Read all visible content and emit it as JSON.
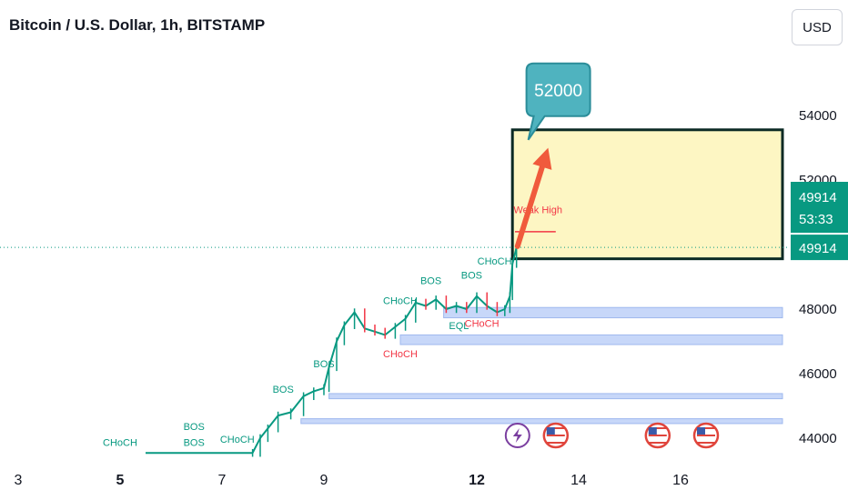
{
  "header": {
    "title": "Bitcoin / U.S. Dollar, 1h, BITSTAMP",
    "currency_button": "USD"
  },
  "colors": {
    "up": "#089981",
    "down": "#f23645",
    "zone_fill": "#fdf6c3",
    "zone_border": "#0b2a24",
    "callout_fill": "#4fb3bf",
    "arrow": "#f05a3c",
    "demand_fill": "#c7d7f9",
    "price_line": "#089981"
  },
  "chart_data": {
    "type": "candlestick",
    "symbol": "Bitcoin / U.S. Dollar",
    "interval": "1h",
    "exchange": "BITSTAMP",
    "x_ticks": [
      {
        "label": "3",
        "day": 3,
        "bold": false
      },
      {
        "label": "5",
        "day": 5,
        "bold": true
      },
      {
        "label": "7",
        "day": 7,
        "bold": false
      },
      {
        "label": "9",
        "day": 9,
        "bold": false
      },
      {
        "label": "12",
        "day": 12,
        "bold": true
      },
      {
        "label": "14",
        "day": 14,
        "bold": false
      },
      {
        "label": "16",
        "day": 16,
        "bold": false
      }
    ],
    "y_ticks": [
      44000,
      46000,
      48000,
      52000,
      54000
    ],
    "current_price": 49914,
    "countdown": "53:33",
    "price_path": [
      [
        5.5,
        43540
      ],
      [
        7.6,
        43540
      ],
      [
        7.75,
        44000
      ],
      [
        7.9,
        44300
      ],
      [
        8.1,
        44700
      ],
      [
        8.35,
        44800
      ],
      [
        8.6,
        45300
      ],
      [
        8.8,
        45450
      ],
      [
        9.0,
        45550
      ],
      [
        9.1,
        46200
      ],
      [
        9.25,
        47000
      ],
      [
        9.4,
        47500
      ],
      [
        9.6,
        47900
      ],
      [
        9.8,
        47400
      ],
      [
        10.0,
        47300
      ],
      [
        10.2,
        47200
      ],
      [
        10.4,
        47450
      ],
      [
        10.6,
        47700
      ],
      [
        10.8,
        48200
      ],
      [
        11.0,
        48100
      ],
      [
        11.2,
        48300
      ],
      [
        11.4,
        48000
      ],
      [
        11.6,
        48100
      ],
      [
        11.8,
        48000
      ],
      [
        12.0,
        48400
      ],
      [
        12.2,
        48100
      ],
      [
        12.4,
        47900
      ],
      [
        12.55,
        48000
      ],
      [
        12.65,
        48400
      ],
      [
        12.7,
        49400
      ],
      [
        12.78,
        49914
      ]
    ],
    "labels": [
      {
        "text": "CHoCH",
        "day": 5.0,
        "price": 43750,
        "color": "up",
        "size": 11
      },
      {
        "text": "BOS",
        "day": 6.45,
        "price": 43750,
        "color": "up",
        "size": 11
      },
      {
        "text": "BOS",
        "day": 6.45,
        "price": 44250,
        "color": "up",
        "size": 14
      },
      {
        "text": "CHoCH",
        "day": 7.3,
        "price": 43850,
        "color": "up",
        "size": 11
      },
      {
        "text": "BOS",
        "day": 8.2,
        "price": 45400,
        "color": "up",
        "size": 11
      },
      {
        "text": "BOS",
        "day": 9.0,
        "price": 46200,
        "color": "up",
        "size": 11
      },
      {
        "text": "CHoCH",
        "day": 10.5,
        "price": 48150,
        "color": "up",
        "size": 11
      },
      {
        "text": "CHoCH",
        "day": 10.5,
        "price": 46500,
        "color": "down",
        "size": 11
      },
      {
        "text": "BOS",
        "day": 11.1,
        "price": 48780,
        "color": "up",
        "size": 11
      },
      {
        "text": "EQL",
        "day": 11.65,
        "price": 47380,
        "color": "up",
        "size": 11
      },
      {
        "text": "BOS",
        "day": 11.9,
        "price": 48950,
        "color": "up",
        "size": 11
      },
      {
        "text": "CHoCH",
        "day": 12.1,
        "price": 47450,
        "color": "down",
        "size": 11
      },
      {
        "text": "CHoCH",
        "day": 12.35,
        "price": 49380,
        "color": "up",
        "size": 11
      },
      {
        "text": "Weak High",
        "day": 13.2,
        "price": 50980,
        "color": "down",
        "size": 11
      }
    ],
    "demand_zones": [
      {
        "day_start": 11.35,
        "day_end": 18.0,
        "price_low": 47730,
        "price_high": 48050
      },
      {
        "day_start": 10.5,
        "day_end": 18.0,
        "price_low": 46900,
        "price_high": 47200
      },
      {
        "day_start": 9.1,
        "day_end": 18.0,
        "price_low": 45220,
        "price_high": 45380
      },
      {
        "day_start": 8.55,
        "day_end": 18.0,
        "price_low": 44450,
        "price_high": 44600
      }
    ],
    "target_zone": {
      "day_start": 12.7,
      "day_end": 18.0,
      "price_low": 49560,
      "price_high": 53560
    },
    "weak_high_line": {
      "day_start": 12.75,
      "day_end": 13.55,
      "price": 50400
    },
    "target_arrow": {
      "from_day": 12.8,
      "from_price": 49950,
      "to_day": 13.4,
      "to_price": 53000
    },
    "callout": {
      "text": "52000",
      "day": 13.6,
      "price": 54800
    },
    "event_icons": [
      {
        "type": "bolt-icon",
        "day": 12.8
      },
      {
        "type": "us-flag-icon",
        "day": 13.55
      },
      {
        "type": "us-flag-icon",
        "day": 15.55
      },
      {
        "type": "us-flag-icon",
        "day": 16.5
      }
    ]
  }
}
